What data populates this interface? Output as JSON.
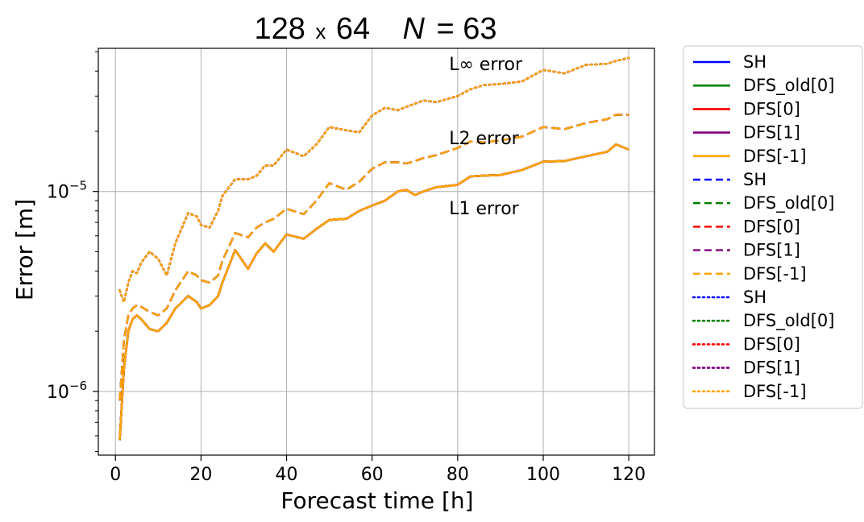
{
  "chart_data": {
    "type": "line",
    "title": {
      "grid": "128",
      "times": "x",
      "grid2": "64",
      "n_symbol": "N",
      "n_eq": "= 63"
    },
    "xlabel": "Forecast time [h]",
    "ylabel": "Error [m]",
    "xlim": [
      -4,
      126
    ],
    "ylim": [
      4.8e-07,
      5.2e-05
    ],
    "yscale": "log",
    "grid": true,
    "legend_placement": "outside-right",
    "x_ticks": [
      0,
      20,
      40,
      60,
      80,
      100,
      120
    ],
    "x_tick_labels": [
      "0",
      "20",
      "40",
      "60",
      "80",
      "100",
      "120"
    ],
    "y_ticks": [
      {
        "value": 1e-05,
        "base": "10",
        "exp": "−5"
      },
      {
        "value": 1e-06,
        "base": "10",
        "exp": "−6"
      }
    ],
    "annotations": [
      {
        "text": "L∞ error",
        "x": 78,
        "y": 4.05e-05
      },
      {
        "text": "L2 error",
        "x": 78,
        "y": 1.72e-05
      },
      {
        "text": "L1 error",
        "x": 78,
        "y": 7.7e-06
      }
    ],
    "x": [
      1,
      2,
      3,
      4,
      5,
      6,
      8,
      10,
      12,
      14,
      17,
      19,
      20,
      22,
      24,
      25,
      28,
      31,
      33,
      35,
      37,
      40,
      44,
      47,
      50,
      54,
      57,
      60,
      63,
      66,
      68,
      70,
      72,
      75,
      80,
      83,
      86,
      90,
      95,
      100,
      105,
      110,
      115,
      117,
      120
    ],
    "series": [
      {
        "name": "SH",
        "style": "solid",
        "color": "#0000ff",
        "values": [
          5.7e-07,
          1.3e-06,
          2e-06,
          2.3e-06,
          2.4e-06,
          2.3e-06,
          2.05e-06,
          2e-06,
          2.2e-06,
          2.6e-06,
          3e-06,
          2.8e-06,
          2.6e-06,
          2.7e-06,
          3e-06,
          3.5e-06,
          5.1e-06,
          4.1e-06,
          4.9e-06,
          5.5e-06,
          5e-06,
          6.1e-06,
          5.8e-06,
          6.5e-06,
          7.2e-06,
          7.3e-06,
          8e-06,
          8.5e-06,
          9e-06,
          1e-05,
          1.02e-05,
          9.6e-06,
          1e-05,
          1.05e-05,
          1.08e-05,
          1.19e-05,
          1.2e-05,
          1.21e-05,
          1.28e-05,
          1.41e-05,
          1.42e-05,
          1.5e-05,
          1.58e-05,
          1.72e-05,
          1.62e-05
        ]
      },
      {
        "name": "DFS_old[0]",
        "style": "solid",
        "color": "#008000",
        "values": [
          5.7e-07,
          1.3e-06,
          2e-06,
          2.3e-06,
          2.4e-06,
          2.3e-06,
          2.05e-06,
          2e-06,
          2.2e-06,
          2.6e-06,
          3e-06,
          2.8e-06,
          2.6e-06,
          2.7e-06,
          3e-06,
          3.5e-06,
          5.1e-06,
          4.1e-06,
          4.9e-06,
          5.5e-06,
          5e-06,
          6.1e-06,
          5.8e-06,
          6.5e-06,
          7.2e-06,
          7.3e-06,
          8e-06,
          8.5e-06,
          9e-06,
          1e-05,
          1.02e-05,
          9.6e-06,
          1e-05,
          1.05e-05,
          1.08e-05,
          1.19e-05,
          1.2e-05,
          1.21e-05,
          1.28e-05,
          1.41e-05,
          1.42e-05,
          1.5e-05,
          1.58e-05,
          1.72e-05,
          1.62e-05
        ]
      },
      {
        "name": "DFS[0]",
        "style": "solid",
        "color": "#ff0000",
        "values": [
          5.7e-07,
          1.3e-06,
          2e-06,
          2.3e-06,
          2.4e-06,
          2.3e-06,
          2.05e-06,
          2e-06,
          2.2e-06,
          2.6e-06,
          3e-06,
          2.8e-06,
          2.6e-06,
          2.7e-06,
          3e-06,
          3.5e-06,
          5.1e-06,
          4.1e-06,
          4.9e-06,
          5.5e-06,
          5e-06,
          6.1e-06,
          5.8e-06,
          6.5e-06,
          7.2e-06,
          7.3e-06,
          8e-06,
          8.5e-06,
          9e-06,
          1e-05,
          1.02e-05,
          9.6e-06,
          1e-05,
          1.05e-05,
          1.08e-05,
          1.19e-05,
          1.2e-05,
          1.21e-05,
          1.28e-05,
          1.41e-05,
          1.42e-05,
          1.5e-05,
          1.58e-05,
          1.72e-05,
          1.62e-05
        ]
      },
      {
        "name": "DFS[1]",
        "style": "solid",
        "color": "#800080",
        "values": [
          5.7e-07,
          1.3e-06,
          2e-06,
          2.3e-06,
          2.4e-06,
          2.3e-06,
          2.05e-06,
          2e-06,
          2.2e-06,
          2.6e-06,
          3e-06,
          2.8e-06,
          2.6e-06,
          2.7e-06,
          3e-06,
          3.5e-06,
          5.1e-06,
          4.1e-06,
          4.9e-06,
          5.5e-06,
          5e-06,
          6.1e-06,
          5.8e-06,
          6.5e-06,
          7.2e-06,
          7.3e-06,
          8e-06,
          8.5e-06,
          9e-06,
          1e-05,
          1.02e-05,
          9.6e-06,
          1e-05,
          1.05e-05,
          1.08e-05,
          1.19e-05,
          1.2e-05,
          1.21e-05,
          1.28e-05,
          1.41e-05,
          1.42e-05,
          1.5e-05,
          1.58e-05,
          1.72e-05,
          1.62e-05
        ]
      },
      {
        "name": "DFS[-1]",
        "style": "solid",
        "color": "#ffa500",
        "values": [
          5.7e-07,
          1.3e-06,
          2e-06,
          2.3e-06,
          2.4e-06,
          2.3e-06,
          2.05e-06,
          2e-06,
          2.2e-06,
          2.6e-06,
          3e-06,
          2.8e-06,
          2.6e-06,
          2.7e-06,
          3e-06,
          3.5e-06,
          5.1e-06,
          4.1e-06,
          4.9e-06,
          5.5e-06,
          5e-06,
          6.1e-06,
          5.8e-06,
          6.5e-06,
          7.2e-06,
          7.3e-06,
          8e-06,
          8.5e-06,
          9e-06,
          1e-05,
          1.02e-05,
          9.6e-06,
          1e-05,
          1.05e-05,
          1.08e-05,
          1.19e-05,
          1.2e-05,
          1.21e-05,
          1.28e-05,
          1.41e-05,
          1.42e-05,
          1.5e-05,
          1.58e-05,
          1.72e-05,
          1.62e-05
        ]
      },
      {
        "name": "SH",
        "style": "dashed",
        "color": "#0000ff",
        "values": [
          9e-07,
          1.8e-06,
          2.4e-06,
          2.6e-06,
          2.7e-06,
          2.65e-06,
          2.5e-06,
          2.4e-06,
          2.6e-06,
          3.2e-06,
          4e-06,
          3.8e-06,
          3.6e-06,
          3.5e-06,
          3.8e-06,
          4.5e-06,
          6.2e-06,
          5.9e-06,
          6.6e-06,
          7e-06,
          7.3e-06,
          8.2e-06,
          7.7e-06,
          9e-06,
          1.1e-05,
          1.02e-05,
          1.12e-05,
          1.3e-05,
          1.4e-05,
          1.4e-05,
          1.38e-05,
          1.42e-05,
          1.47e-05,
          1.52e-05,
          1.65e-05,
          1.78e-05,
          1.76e-05,
          1.8e-05,
          1.88e-05,
          2.1e-05,
          2.05e-05,
          2.2e-05,
          2.3e-05,
          2.42e-05,
          2.42e-05
        ]
      },
      {
        "name": "DFS_old[0]",
        "style": "dashed",
        "color": "#008000",
        "values": [
          9e-07,
          1.8e-06,
          2.4e-06,
          2.6e-06,
          2.7e-06,
          2.65e-06,
          2.5e-06,
          2.4e-06,
          2.6e-06,
          3.2e-06,
          4e-06,
          3.8e-06,
          3.6e-06,
          3.5e-06,
          3.8e-06,
          4.5e-06,
          6.2e-06,
          5.9e-06,
          6.6e-06,
          7e-06,
          7.3e-06,
          8.2e-06,
          7.7e-06,
          9e-06,
          1.1e-05,
          1.02e-05,
          1.12e-05,
          1.3e-05,
          1.4e-05,
          1.4e-05,
          1.38e-05,
          1.42e-05,
          1.47e-05,
          1.52e-05,
          1.65e-05,
          1.78e-05,
          1.76e-05,
          1.8e-05,
          1.88e-05,
          2.1e-05,
          2.05e-05,
          2.2e-05,
          2.3e-05,
          2.42e-05,
          2.42e-05
        ]
      },
      {
        "name": "DFS[0]",
        "style": "dashed",
        "color": "#ff0000",
        "values": [
          9e-07,
          1.8e-06,
          2.4e-06,
          2.6e-06,
          2.7e-06,
          2.65e-06,
          2.5e-06,
          2.4e-06,
          2.6e-06,
          3.2e-06,
          4e-06,
          3.8e-06,
          3.6e-06,
          3.5e-06,
          3.8e-06,
          4.5e-06,
          6.2e-06,
          5.9e-06,
          6.6e-06,
          7e-06,
          7.3e-06,
          8.2e-06,
          7.7e-06,
          9e-06,
          1.1e-05,
          1.02e-05,
          1.12e-05,
          1.3e-05,
          1.4e-05,
          1.4e-05,
          1.38e-05,
          1.42e-05,
          1.47e-05,
          1.52e-05,
          1.65e-05,
          1.78e-05,
          1.76e-05,
          1.8e-05,
          1.88e-05,
          2.1e-05,
          2.05e-05,
          2.2e-05,
          2.3e-05,
          2.42e-05,
          2.42e-05
        ]
      },
      {
        "name": "DFS[1]",
        "style": "dashed",
        "color": "#800080",
        "values": [
          9e-07,
          1.8e-06,
          2.4e-06,
          2.6e-06,
          2.7e-06,
          2.65e-06,
          2.5e-06,
          2.4e-06,
          2.6e-06,
          3.2e-06,
          4e-06,
          3.8e-06,
          3.6e-06,
          3.5e-06,
          3.8e-06,
          4.5e-06,
          6.2e-06,
          5.9e-06,
          6.6e-06,
          7e-06,
          7.3e-06,
          8.2e-06,
          7.7e-06,
          9e-06,
          1.1e-05,
          1.02e-05,
          1.12e-05,
          1.3e-05,
          1.4e-05,
          1.4e-05,
          1.38e-05,
          1.42e-05,
          1.47e-05,
          1.52e-05,
          1.65e-05,
          1.78e-05,
          1.76e-05,
          1.8e-05,
          1.88e-05,
          2.1e-05,
          2.05e-05,
          2.2e-05,
          2.3e-05,
          2.42e-05,
          2.42e-05
        ]
      },
      {
        "name": "DFS[-1]",
        "style": "dashed",
        "color": "#ffa500",
        "values": [
          9e-07,
          1.8e-06,
          2.4e-06,
          2.6e-06,
          2.7e-06,
          2.65e-06,
          2.5e-06,
          2.4e-06,
          2.6e-06,
          3.2e-06,
          4e-06,
          3.8e-06,
          3.6e-06,
          3.5e-06,
          3.8e-06,
          4.5e-06,
          6.2e-06,
          5.9e-06,
          6.6e-06,
          7e-06,
          7.3e-06,
          8.2e-06,
          7.7e-06,
          9e-06,
          1.1e-05,
          1.02e-05,
          1.12e-05,
          1.3e-05,
          1.4e-05,
          1.4e-05,
          1.38e-05,
          1.42e-05,
          1.47e-05,
          1.52e-05,
          1.65e-05,
          1.78e-05,
          1.76e-05,
          1.8e-05,
          1.88e-05,
          2.1e-05,
          2.05e-05,
          2.2e-05,
          2.3e-05,
          2.42e-05,
          2.42e-05
        ]
      },
      {
        "name": "SH",
        "style": "dotted",
        "color": "#0000ff",
        "values": [
          3.2e-06,
          2.8e-06,
          3.5e-06,
          4e-06,
          3.9e-06,
          4.4e-06,
          5e-06,
          4.6e-06,
          3.8e-06,
          5.5e-06,
          7.8e-06,
          7.5e-06,
          6.8e-06,
          6.6e-06,
          8e-06,
          9.5e-06,
          1.15e-05,
          1.15e-05,
          1.2e-05,
          1.35e-05,
          1.35e-05,
          1.62e-05,
          1.5e-05,
          1.72e-05,
          2.1e-05,
          2.02e-05,
          1.98e-05,
          2.4e-05,
          2.62e-05,
          2.55e-05,
          2.65e-05,
          2.75e-05,
          2.85e-05,
          2.8e-05,
          3e-05,
          3.25e-05,
          3.4e-05,
          3.45e-05,
          3.55e-05,
          4.05e-05,
          3.9e-05,
          4.3e-05,
          4.35e-05,
          4.5e-05,
          4.65e-05
        ]
      },
      {
        "name": "DFS_old[0]",
        "style": "dotted",
        "color": "#008000",
        "values": [
          3.2e-06,
          2.8e-06,
          3.5e-06,
          4e-06,
          3.9e-06,
          4.4e-06,
          5e-06,
          4.6e-06,
          3.8e-06,
          5.5e-06,
          7.8e-06,
          7.5e-06,
          6.8e-06,
          6.6e-06,
          8e-06,
          9.5e-06,
          1.15e-05,
          1.15e-05,
          1.2e-05,
          1.35e-05,
          1.35e-05,
          1.62e-05,
          1.5e-05,
          1.72e-05,
          2.1e-05,
          2.02e-05,
          1.98e-05,
          2.4e-05,
          2.62e-05,
          2.55e-05,
          2.65e-05,
          2.75e-05,
          2.85e-05,
          2.8e-05,
          3e-05,
          3.25e-05,
          3.4e-05,
          3.45e-05,
          3.55e-05,
          4.05e-05,
          3.9e-05,
          4.3e-05,
          4.35e-05,
          4.5e-05,
          4.65e-05
        ]
      },
      {
        "name": "DFS[0]",
        "style": "dotted",
        "color": "#ff0000",
        "values": [
          3.2e-06,
          2.8e-06,
          3.5e-06,
          4e-06,
          3.9e-06,
          4.4e-06,
          5e-06,
          4.6e-06,
          3.8e-06,
          5.5e-06,
          7.8e-06,
          7.5e-06,
          6.8e-06,
          6.6e-06,
          8e-06,
          9.5e-06,
          1.15e-05,
          1.15e-05,
          1.2e-05,
          1.35e-05,
          1.35e-05,
          1.62e-05,
          1.5e-05,
          1.72e-05,
          2.1e-05,
          2.02e-05,
          1.98e-05,
          2.4e-05,
          2.62e-05,
          2.55e-05,
          2.65e-05,
          2.75e-05,
          2.85e-05,
          2.8e-05,
          3e-05,
          3.25e-05,
          3.4e-05,
          3.45e-05,
          3.55e-05,
          4.05e-05,
          3.9e-05,
          4.3e-05,
          4.35e-05,
          4.5e-05,
          4.65e-05
        ]
      },
      {
        "name": "DFS[1]",
        "style": "dotted",
        "color": "#800080",
        "values": [
          3.2e-06,
          2.8e-06,
          3.5e-06,
          4e-06,
          3.9e-06,
          4.4e-06,
          5e-06,
          4.6e-06,
          3.8e-06,
          5.5e-06,
          7.8e-06,
          7.5e-06,
          6.8e-06,
          6.6e-06,
          8e-06,
          9.5e-06,
          1.15e-05,
          1.15e-05,
          1.2e-05,
          1.35e-05,
          1.35e-05,
          1.62e-05,
          1.5e-05,
          1.72e-05,
          2.1e-05,
          2.02e-05,
          1.98e-05,
          2.4e-05,
          2.62e-05,
          2.55e-05,
          2.65e-05,
          2.75e-05,
          2.85e-05,
          2.8e-05,
          3e-05,
          3.25e-05,
          3.4e-05,
          3.45e-05,
          3.55e-05,
          4.05e-05,
          3.9e-05,
          4.3e-05,
          4.35e-05,
          4.5e-05,
          4.65e-05
        ]
      },
      {
        "name": "DFS[-1]",
        "style": "dotted",
        "color": "#ffa500",
        "values": [
          3.2e-06,
          2.8e-06,
          3.5e-06,
          4e-06,
          3.9e-06,
          4.4e-06,
          5e-06,
          4.6e-06,
          3.8e-06,
          5.5e-06,
          7.8e-06,
          7.5e-06,
          6.8e-06,
          6.6e-06,
          8e-06,
          9.5e-06,
          1.15e-05,
          1.15e-05,
          1.2e-05,
          1.35e-05,
          1.35e-05,
          1.62e-05,
          1.5e-05,
          1.72e-05,
          2.1e-05,
          2.02e-05,
          1.98e-05,
          2.4e-05,
          2.62e-05,
          2.55e-05,
          2.65e-05,
          2.75e-05,
          2.85e-05,
          2.8e-05,
          3e-05,
          3.25e-05,
          3.4e-05,
          3.45e-05,
          3.55e-05,
          4.05e-05,
          3.9e-05,
          4.3e-05,
          4.35e-05,
          4.5e-05,
          4.65e-05
        ]
      }
    ]
  }
}
